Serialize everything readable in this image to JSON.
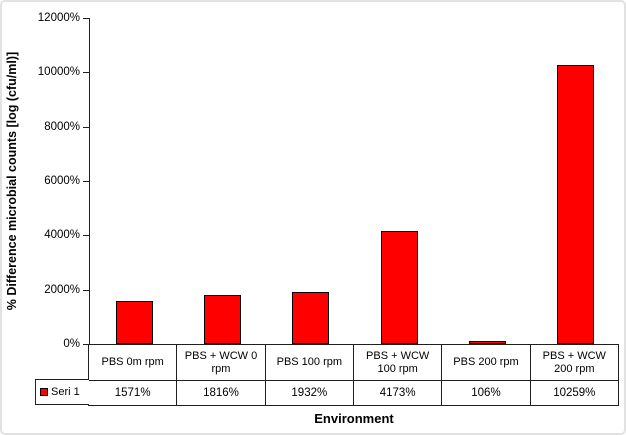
{
  "chart_data": {
    "type": "bar",
    "title": "",
    "categories": [
      "PBS 0m rpm",
      "PBS + WCW 0 rpm",
      "PBS 100 rpm",
      "PBS + WCW 100 rpm",
      "PBS 200 rpm",
      "PBS + WCW 200 rpm"
    ],
    "series": [
      {
        "name": "Seri 1",
        "values": [
          1571,
          1816,
          1932,
          4173,
          106,
          10259
        ]
      }
    ],
    "value_labels": [
      "1571%",
      "1816%",
      "1932%",
      "4173%",
      "106%",
      "10259%"
    ],
    "xlabel": "Environment",
    "ylabel": "% Difference microbial counts [log (cfu/ml)]",
    "ylim": [
      0,
      12000
    ],
    "ytick_step": 2000,
    "ytick_labels": [
      "0%",
      "2000%",
      "4000%",
      "6000%",
      "8000%",
      "10000%",
      "12000%"
    ],
    "grid": false,
    "legend_position": "bottom-left-of-data-table",
    "bar_color": "#ff0000",
    "bar_border_color": "#000000",
    "axis_color": "#1f1f1f"
  },
  "legend": {
    "series1_label": "Seri 1"
  }
}
